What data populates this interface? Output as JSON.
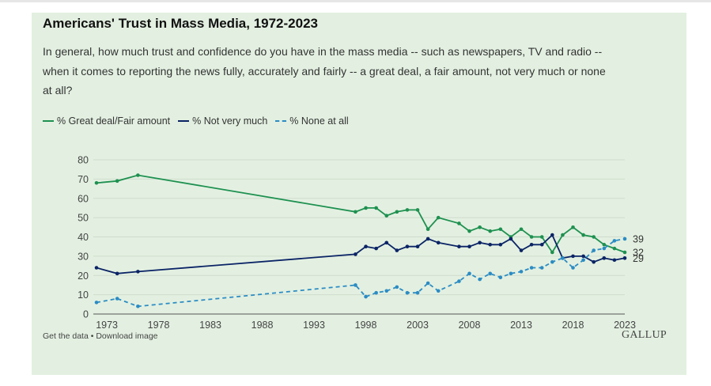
{
  "chart_data": {
    "type": "line",
    "title": "Americans' Trust in Mass Media, 1972-2023",
    "subtitle": "In general, how much trust and confidence do you have in the mass media -- such as newspapers, TV and radio -- when it comes to reporting the news fully, accurately and fairly -- a great deal, a fair amount, not very much or none at all?",
    "xlim": [
      1972,
      2023
    ],
    "ylim": [
      0,
      80
    ],
    "yticks": [
      0,
      10,
      20,
      30,
      40,
      50,
      60,
      70,
      80
    ],
    "xticks": [
      1973,
      1978,
      1983,
      1988,
      1993,
      1998,
      2003,
      2008,
      2013,
      2018,
      2023
    ],
    "grid": true,
    "legend_position": "top-left",
    "series": [
      {
        "name": "% Great deal/Fair amount",
        "color": "#1e9150",
        "style": "solid",
        "end_label": "32",
        "x": [
          1972,
          1974,
          1976,
          1997,
          1998,
          1999,
          2000,
          2001,
          2002,
          2003,
          2004,
          2005,
          2007,
          2008,
          2009,
          2010,
          2011,
          2012,
          2013,
          2014,
          2015,
          2016,
          2017,
          2018,
          2019,
          2020,
          2021,
          2022,
          2023
        ],
        "y": [
          68,
          69,
          72,
          53,
          55,
          55,
          51,
          53,
          54,
          54,
          44,
          50,
          47,
          43,
          45,
          43,
          44,
          40,
          44,
          40,
          40,
          32,
          41,
          45,
          41,
          40,
          36,
          34,
          32
        ]
      },
      {
        "name": "% Not very much",
        "color": "#0b2466",
        "style": "solid",
        "end_label": "29",
        "x": [
          1972,
          1974,
          1976,
          1997,
          1998,
          1999,
          2000,
          2001,
          2002,
          2003,
          2004,
          2005,
          2007,
          2008,
          2009,
          2010,
          2011,
          2012,
          2013,
          2014,
          2015,
          2016,
          2017,
          2018,
          2019,
          2020,
          2021,
          2022,
          2023
        ],
        "y": [
          24,
          21,
          22,
          31,
          35,
          34,
          37,
          33,
          35,
          35,
          39,
          37,
          35,
          35,
          37,
          36,
          36,
          39,
          33,
          36,
          36,
          41,
          29,
          30,
          30,
          27,
          29,
          28,
          29
        ]
      },
      {
        "name": "% None at all",
        "color": "#2b8cc4",
        "style": "dashed",
        "end_label": "39",
        "x": [
          1972,
          1974,
          1976,
          1997,
          1998,
          1999,
          2000,
          2001,
          2002,
          2003,
          2004,
          2005,
          2007,
          2008,
          2009,
          2010,
          2011,
          2012,
          2013,
          2014,
          2015,
          2016,
          2017,
          2018,
          2019,
          2020,
          2021,
          2022,
          2023
        ],
        "y": [
          6,
          8,
          4,
          15,
          9,
          11,
          12,
          14,
          11,
          11,
          16,
          12,
          17,
          21,
          18,
          21,
          19,
          21,
          22,
          24,
          24,
          27,
          29,
          24,
          28,
          33,
          34,
          38,
          39
        ]
      }
    ]
  },
  "footer": {
    "get_data": "Get the data",
    "separator": " • ",
    "download": "Download image",
    "brand": "GALLUP"
  },
  "colors": {
    "background": "#e3f0e1",
    "grid": "#cfdccd"
  }
}
